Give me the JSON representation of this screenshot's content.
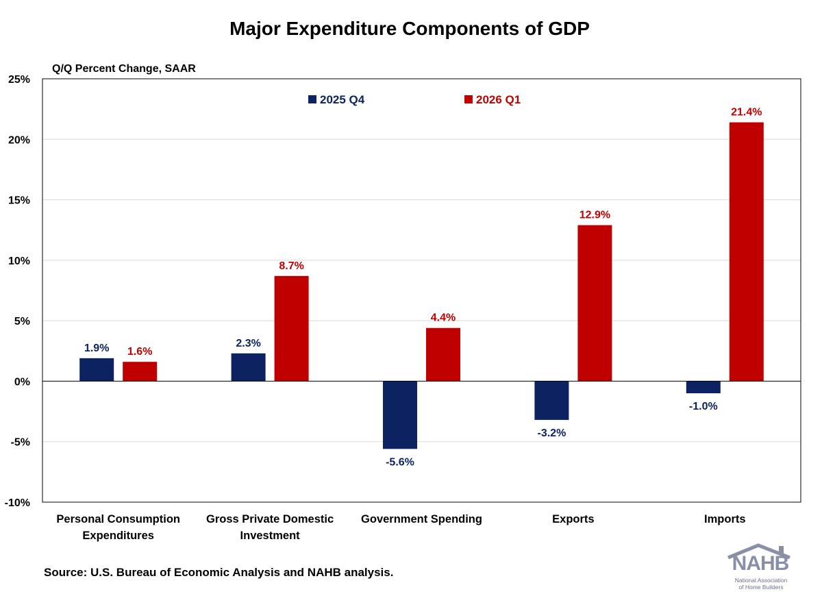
{
  "chart_data": {
    "type": "bar",
    "title": "Major Expenditure Components of GDP",
    "ylabel": "Q/Q Percent Change, SAAR",
    "xlabel": "",
    "categories": [
      [
        "Personal Consumption",
        "Expenditures"
      ],
      [
        "Gross Private Domestic",
        "Investment"
      ],
      [
        "Government Spending"
      ],
      [
        "Exports"
      ],
      [
        "Imports"
      ]
    ],
    "series": [
      {
        "name": "2025 Q4",
        "color": "#0c2261",
        "values": [
          1.9,
          2.3,
          -5.6,
          -3.2,
          -1.0
        ],
        "labels": [
          "1.9%",
          "2.3%",
          "-5.6%",
          "-3.2%",
          "-1.0%"
        ]
      },
      {
        "name": "2026 Q1",
        "color": "#c00000",
        "values": [
          1.6,
          8.7,
          4.4,
          12.9,
          21.4
        ],
        "labels": [
          "1.6%",
          "8.7%",
          "4.4%",
          "12.9%",
          "21.4%"
        ]
      }
    ],
    "ylim": [
      -10,
      25
    ],
    "yticks": [
      25,
      20,
      15,
      10,
      5,
      0,
      -5,
      -10
    ],
    "ytick_labels": [
      "25%",
      "20%",
      "15%",
      "10%",
      "5%",
      "0%",
      "-5%",
      "-10%"
    ],
    "grid": true,
    "legend_position": "top-center"
  },
  "source": "Source: U.S. Bureau of Economic Analysis and NAHB analysis.",
  "logo": {
    "text": "NAHB",
    "line1": "National Association",
    "line2": "of Home Builders",
    "color": "#8a8fa8",
    "roof_color": "#8a8fa8"
  }
}
